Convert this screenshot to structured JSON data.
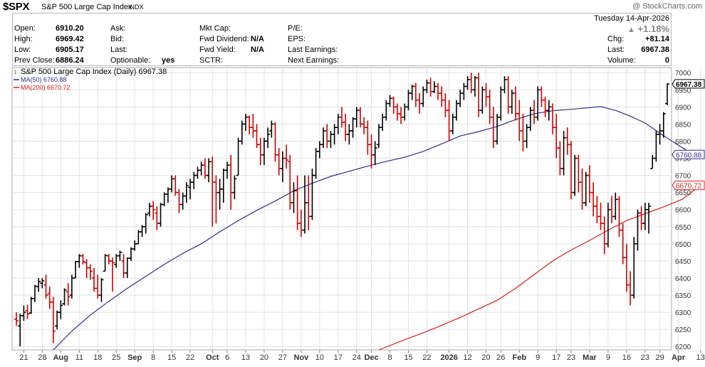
{
  "header": {
    "symbol": "$SPX",
    "name": "S&P 500 Large Cap Index",
    "exchange": "INDX",
    "credit": "@ StockCharts.com"
  },
  "quote": {
    "date": "Tuesday  14-Apr-2026",
    "pct_change": "+1.18%",
    "open_label": "Open:",
    "open": "6910.20",
    "high_label": "High:",
    "high": "6969.42",
    "low_label": "Low:",
    "low": "6905.17",
    "prev_label": "Prev Close:",
    "prev": "6886.24",
    "ask_label": "Ask:",
    "bid_label": "Bid:",
    "last_label_mid": "Last:",
    "optionable_label": "Optionable:",
    "optionable": "yes",
    "mktcap_label": "Mkt Cap:",
    "fwddiv_label": "Fwd Dividend:",
    "fwddiv": "N/A",
    "fwdyield_label": "Fwd Yield:",
    "fwdyield": "N/A",
    "sctr_label": "SCTR:",
    "pe_label": "P/E:",
    "eps_label": "EPS:",
    "last_earn_label": "Last Earnings:",
    "next_earn_label": "Next Earnings:",
    "chg_label": "Chg:",
    "chg": "+81.14",
    "last_label": "Last:",
    "last": "6967.38",
    "volume_label": "Volume:",
    "volume": "0"
  },
  "colors": {
    "up": "#000000",
    "down": "#cc0000",
    "ma50": "#2e2e8f",
    "ma200": "#d42020",
    "grid": "#e3e3e3",
    "axis": "#333333"
  },
  "chart_data": {
    "type": "ohlc",
    "legend": [
      {
        "text": "S&P 500 Large Cap Index (Daily) 6967.38",
        "color": "#000000"
      },
      {
        "text": "MA(50) 6760.88",
        "color": "#2e2e8f"
      },
      {
        "text": "MA(200) 6670.72",
        "color": "#d42020"
      }
    ],
    "ylim": [
      6190,
      7015
    ],
    "y_ticks": [
      6200,
      6250,
      6300,
      6350,
      6400,
      6450,
      6500,
      6550,
      6600,
      6650,
      6700,
      6750,
      6800,
      6850,
      6900,
      6950,
      7000
    ],
    "x_ticks": [
      {
        "label": "21",
        "i": 2
      },
      {
        "label": "28",
        "i": 7
      },
      {
        "label": "Aug",
        "i": 12
      },
      {
        "label": "11",
        "i": 17
      },
      {
        "label": "18",
        "i": 22
      },
      {
        "label": "25",
        "i": 27
      },
      {
        "label": "Sep",
        "i": 32
      },
      {
        "label": "8",
        "i": 37
      },
      {
        "label": "15",
        "i": 42
      },
      {
        "label": "22",
        "i": 47
      },
      {
        "label": "Oct",
        "i": 53
      },
      {
        "label": "6",
        "i": 57
      },
      {
        "label": "13",
        "i": 62
      },
      {
        "label": "20",
        "i": 67
      },
      {
        "label": "27",
        "i": 72
      },
      {
        "label": "Nov",
        "i": 77
      },
      {
        "label": "10",
        "i": 82
      },
      {
        "label": "17",
        "i": 87
      },
      {
        "label": "24",
        "i": 92
      },
      {
        "label": "Dec",
        "i": 96
      },
      {
        "label": "8",
        "i": 101
      },
      {
        "label": "15",
        "i": 106
      },
      {
        "label": "22",
        "i": 111
      },
      {
        "label": "2026",
        "i": 117
      },
      {
        "label": "12",
        "i": 122
      },
      {
        "label": "20",
        "i": 127
      },
      {
        "label": "26",
        "i": 131
      },
      {
        "label": "Feb",
        "i": 136
      },
      {
        "label": "9",
        "i": 141
      },
      {
        "label": "17",
        "i": 146
      },
      {
        "label": "23",
        "i": 150
      },
      {
        "label": "Mar",
        "i": 155
      },
      {
        "label": "9",
        "i": 160
      },
      {
        "label": "16",
        "i": 165
      },
      {
        "label": "23",
        "i": 170
      },
      {
        "label": "29",
        "i": 174
      },
      {
        "label": "Apr",
        "i": 179
      },
      {
        "label": "13",
        "i": 185
      }
    ],
    "last_tags": [
      {
        "text": "6967.38",
        "value": 6967.38,
        "bold": true,
        "color": "#000000"
      },
      {
        "text": "6760.88",
        "value": 6760.88,
        "bold": false,
        "color": "#2e2e8f"
      },
      {
        "text": "6670.72",
        "value": 6670.72,
        "bold": false,
        "color": "#d42020"
      }
    ],
    "ohlc": [
      [
        6280,
        6300,
        6260,
        6275
      ],
      [
        6260,
        6296,
        6200,
        6290
      ],
      [
        6290,
        6320,
        6275,
        6300
      ],
      [
        6305,
        6322,
        6280,
        6295
      ],
      [
        6298,
        6345,
        6295,
        6340
      ],
      [
        6340,
        6380,
        6330,
        6376
      ],
      [
        6375,
        6400,
        6360,
        6390
      ],
      [
        6385,
        6400,
        6370,
        6392
      ],
      [
        6380,
        6410,
        6340,
        6350
      ],
      [
        6355,
        6375,
        6310,
        6330
      ],
      [
        6330,
        6345,
        6210,
        6245
      ],
      [
        6260,
        6305,
        6250,
        6300
      ],
      [
        6300,
        6335,
        6280,
        6320
      ],
      [
        6325,
        6370,
        6320,
        6365
      ],
      [
        6360,
        6385,
        6320,
        6345
      ],
      [
        6350,
        6410,
        6340,
        6400
      ],
      [
        6400,
        6450,
        6400,
        6448
      ],
      [
        6448,
        6470,
        6430,
        6465
      ],
      [
        6465,
        6470,
        6440,
        6448
      ],
      [
        6445,
        6455,
        6400,
        6430
      ],
      [
        6430,
        6440,
        6395,
        6420
      ],
      [
        6400,
        6430,
        6360,
        6370
      ],
      [
        6370,
        6410,
        6340,
        6350
      ],
      [
        6350,
        6400,
        6330,
        6395
      ],
      [
        6420,
        6470,
        6420,
        6466
      ],
      [
        6465,
        6470,
        6440,
        6450
      ],
      [
        6450,
        6460,
        6360,
        6445
      ],
      [
        6440,
        6470,
        6430,
        6465
      ],
      [
        6465,
        6480,
        6450,
        6475
      ],
      [
        6450,
        6470,
        6400,
        6415
      ],
      [
        6415,
        6460,
        6400,
        6458
      ],
      [
        6458,
        6490,
        6450,
        6485
      ],
      [
        6485,
        6510,
        6480,
        6500
      ],
      [
        6500,
        6540,
        6500,
        6535
      ],
      [
        6535,
        6555,
        6520,
        6550
      ],
      [
        6550,
        6590,
        6530,
        6585
      ],
      [
        6590,
        6620,
        6580,
        6610
      ],
      [
        6610,
        6625,
        6570,
        6600
      ],
      [
        6590,
        6610,
        6540,
        6560
      ],
      [
        6560,
        6620,
        6550,
        6615
      ],
      [
        6615,
        6650,
        6610,
        6645
      ],
      [
        6645,
        6665,
        6620,
        6660
      ],
      [
        6660,
        6700,
        6650,
        6690
      ],
      [
        6690,
        6700,
        6640,
        6650
      ],
      [
        6650,
        6660,
        6590,
        6615
      ],
      [
        6615,
        6650,
        6600,
        6640
      ],
      [
        6640,
        6680,
        6620,
        6670
      ],
      [
        6665,
        6690,
        6630,
        6680
      ],
      [
        6680,
        6710,
        6660,
        6700
      ],
      [
        6700,
        6725,
        6690,
        6715
      ],
      [
        6715,
        6740,
        6700,
        6730
      ],
      [
        6730,
        6750,
        6690,
        6700
      ],
      [
        6700,
        6750,
        6680,
        6740
      ],
      [
        6740,
        6755,
        6550,
        6680
      ],
      [
        6680,
        6700,
        6560,
        6650
      ],
      [
        6650,
        6690,
        6600,
        6660
      ],
      [
        6660,
        6720,
        6620,
        6715
      ],
      [
        6715,
        6740,
        6690,
        6730
      ],
      [
        6730,
        6760,
        6600,
        6650
      ],
      [
        6650,
        6700,
        6630,
        6690
      ],
      [
        6700,
        6810,
        6700,
        6800
      ],
      [
        6800,
        6860,
        6790,
        6850
      ],
      [
        6850,
        6880,
        6830,
        6870
      ],
      [
        6870,
        6875,
        6820,
        6840
      ],
      [
        6840,
        6880,
        6810,
        6830
      ],
      [
        6830,
        6850,
        6780,
        6790
      ],
      [
        6790,
        6810,
        6730,
        6760
      ],
      [
        6760,
        6810,
        6730,
        6800
      ],
      [
        6800,
        6840,
        6780,
        6820
      ],
      [
        6830,
        6860,
        6810,
        6850
      ],
      [
        6850,
        6855,
        6740,
        6760
      ],
      [
        6760,
        6780,
        6700,
        6720
      ],
      [
        6720,
        6770,
        6680,
        6750
      ],
      [
        6750,
        6790,
        6720,
        6745
      ],
      [
        6740,
        6760,
        6600,
        6620
      ],
      [
        6620,
        6680,
        6590,
        6655
      ],
      [
        6655,
        6700,
        6540,
        6560
      ],
      [
        6560,
        6600,
        6520,
        6540
      ],
      [
        6540,
        6700,
        6530,
        6620
      ],
      [
        6620,
        6700,
        6540,
        6580
      ],
      [
        6580,
        6720,
        6570,
        6700
      ],
      [
        6700,
        6780,
        6690,
        6770
      ],
      [
        6770,
        6800,
        6750,
        6790
      ],
      [
        6790,
        6840,
        6780,
        6830
      ],
      [
        6830,
        6850,
        6780,
        6800
      ],
      [
        6800,
        6830,
        6780,
        6820
      ],
      [
        6820,
        6850,
        6790,
        6840
      ],
      [
        6840,
        6880,
        6820,
        6870
      ],
      [
        6870,
        6900,
        6840,
        6855
      ],
      [
        6855,
        6880,
        6800,
        6820
      ],
      [
        6820,
        6850,
        6790,
        6830
      ],
      [
        6830,
        6870,
        6810,
        6865
      ],
      [
        6865,
        6900,
        6840,
        6890
      ],
      [
        6890,
        6900,
        6840,
        6850
      ],
      [
        6850,
        6870,
        6820,
        6840
      ],
      [
        6840,
        6860,
        6760,
        6790
      ],
      [
        6790,
        6820,
        6720,
        6760
      ],
      [
        6760,
        6800,
        6730,
        6780
      ],
      [
        6790,
        6850,
        6780,
        6840
      ],
      [
        6840,
        6880,
        6830,
        6870
      ],
      [
        6870,
        6920,
        6860,
        6910
      ],
      [
        6910,
        6935,
        6900,
        6925
      ],
      [
        6925,
        6930,
        6880,
        6900
      ],
      [
        6900,
        6910,
        6860,
        6880
      ],
      [
        6880,
        6900,
        6850,
        6870
      ],
      [
        6870,
        6910,
        6860,
        6900
      ],
      [
        6900,
        6950,
        6890,
        6940
      ],
      [
        6940,
        6965,
        6920,
        6960
      ],
      [
        6960,
        6970,
        6900,
        6920
      ],
      [
        6920,
        6940,
        6880,
        6910
      ],
      [
        6910,
        6960,
        6900,
        6950
      ],
      [
        6950,
        6980,
        6940,
        6970
      ],
      [
        6970,
        6985,
        6930,
        6945
      ],
      [
        6945,
        6975,
        6940,
        6960
      ],
      [
        6960,
        6970,
        6920,
        6940
      ],
      [
        6940,
        6960,
        6900,
        6920
      ],
      [
        6920,
        6940,
        6870,
        6890
      ],
      [
        6890,
        6920,
        6800,
        6830
      ],
      [
        6830,
        6880,
        6820,
        6870
      ],
      [
        6870,
        6920,
        6860,
        6910
      ],
      [
        6910,
        6950,
        6900,
        6940
      ],
      [
        6940,
        6970,
        6920,
        6960
      ],
      [
        6960,
        6990,
        6950,
        6980
      ],
      [
        6980,
        7000,
        6940,
        6950
      ],
      [
        6950,
        6990,
        6930,
        6985
      ],
      [
        6985,
        7000,
        6870,
        6890
      ],
      [
        6890,
        6960,
        6880,
        6950
      ],
      [
        6950,
        6970,
        6900,
        6930
      ],
      [
        6930,
        6950,
        6850,
        6870
      ],
      [
        6870,
        6900,
        6780,
        6800
      ],
      [
        6800,
        6880,
        6790,
        6870
      ],
      [
        6870,
        6960,
        6860,
        6950
      ],
      [
        6950,
        6990,
        6940,
        6980
      ],
      [
        6980,
        6990,
        6880,
        6900
      ],
      [
        6900,
        6950,
        6880,
        6940
      ],
      [
        6940,
        6960,
        6860,
        6880
      ],
      [
        6880,
        6920,
        6800,
        6830
      ],
      [
        6830,
        6880,
        6770,
        6800
      ],
      [
        6800,
        6850,
        6780,
        6840
      ],
      [
        6840,
        6900,
        6830,
        6890
      ],
      [
        6890,
        6920,
        6850,
        6870
      ],
      [
        6870,
        6960,
        6860,
        6950
      ],
      [
        6950,
        6960,
        6900,
        6920
      ],
      [
        6920,
        6930,
        6870,
        6890
      ],
      [
        6890,
        6920,
        6860,
        6900
      ],
      [
        6900,
        6910,
        6820,
        6840
      ],
      [
        6840,
        6880,
        6750,
        6780
      ],
      [
        6780,
        6800,
        6700,
        6720
      ],
      [
        6720,
        6830,
        6700,
        6810
      ],
      [
        6810,
        6840,
        6760,
        6790
      ],
      [
        6790,
        6800,
        6630,
        6650
      ],
      [
        6650,
        6760,
        6640,
        6750
      ],
      [
        6750,
        6760,
        6650,
        6680
      ],
      [
        6680,
        6720,
        6600,
        6620
      ],
      [
        6620,
        6710,
        6610,
        6700
      ],
      [
        6700,
        6730,
        6620,
        6650
      ],
      [
        6650,
        6680,
        6580,
        6610
      ],
      [
        6610,
        6640,
        6560,
        6580
      ],
      [
        6580,
        6620,
        6540,
        6560
      ],
      [
        6560,
        6580,
        6470,
        6500
      ],
      [
        6500,
        6620,
        6490,
        6600
      ],
      [
        6600,
        6640,
        6560,
        6580
      ],
      [
        6580,
        6650,
        6570,
        6630
      ],
      [
        6630,
        6640,
        6520,
        6540
      ],
      [
        6540,
        6560,
        6440,
        6460
      ],
      [
        6460,
        6500,
        6360,
        6380
      ],
      [
        6380,
        6420,
        6320,
        6350
      ],
      [
        6350,
        6520,
        6340,
        6500
      ],
      [
        6500,
        6600,
        6480,
        6590
      ],
      [
        6590,
        6610,
        6540,
        6560
      ],
      [
        6560,
        6620,
        6540,
        6600
      ],
      [
        6600,
        6620,
        6530,
        6610
      ],
      [
        6720,
        6760,
        6720,
        6750
      ],
      [
        6750,
        6830,
        6740,
        6820
      ],
      [
        6820,
        6850,
        6790,
        6830
      ],
      [
        6830,
        6885,
        6810,
        6880
      ],
      [
        6910,
        6969,
        6905,
        6967
      ]
    ],
    "ma50": [
      [
        10,
        6190
      ],
      [
        15,
        6245
      ],
      [
        20,
        6292
      ],
      [
        25,
        6332
      ],
      [
        30,
        6370
      ],
      [
        35,
        6405
      ],
      [
        40,
        6440
      ],
      [
        45,
        6472
      ],
      [
        50,
        6500
      ],
      [
        55,
        6535
      ],
      [
        60,
        6568
      ],
      [
        65,
        6598
      ],
      [
        70,
        6625
      ],
      [
        75,
        6655
      ],
      [
        80,
        6677
      ],
      [
        85,
        6697
      ],
      [
        90,
        6712
      ],
      [
        95,
        6727
      ],
      [
        100,
        6741
      ],
      [
        105,
        6753
      ],
      [
        110,
        6770
      ],
      [
        115,
        6792
      ],
      [
        120,
        6815
      ],
      [
        125,
        6828
      ],
      [
        130,
        6843
      ],
      [
        135,
        6863
      ],
      [
        140,
        6880
      ],
      [
        145,
        6889
      ],
      [
        150,
        6893
      ],
      [
        155,
        6898
      ],
      [
        158,
        6901
      ],
      [
        162,
        6890
      ],
      [
        166,
        6873
      ],
      [
        170,
        6853
      ],
      [
        174,
        6823
      ],
      [
        178,
        6795
      ],
      [
        182,
        6768
      ],
      [
        185,
        6761
      ]
    ],
    "ma200": [
      [
        98,
        6190
      ],
      [
        105,
        6220
      ],
      [
        110,
        6240
      ],
      [
        115,
        6262
      ],
      [
        120,
        6285
      ],
      [
        125,
        6310
      ],
      [
        130,
        6335
      ],
      [
        135,
        6370
      ],
      [
        140,
        6410
      ],
      [
        145,
        6450
      ],
      [
        150,
        6482
      ],
      [
        155,
        6510
      ],
      [
        160,
        6540
      ],
      [
        165,
        6568
      ],
      [
        170,
        6588
      ],
      [
        175,
        6608
      ],
      [
        180,
        6630
      ],
      [
        185,
        6671
      ]
    ]
  }
}
